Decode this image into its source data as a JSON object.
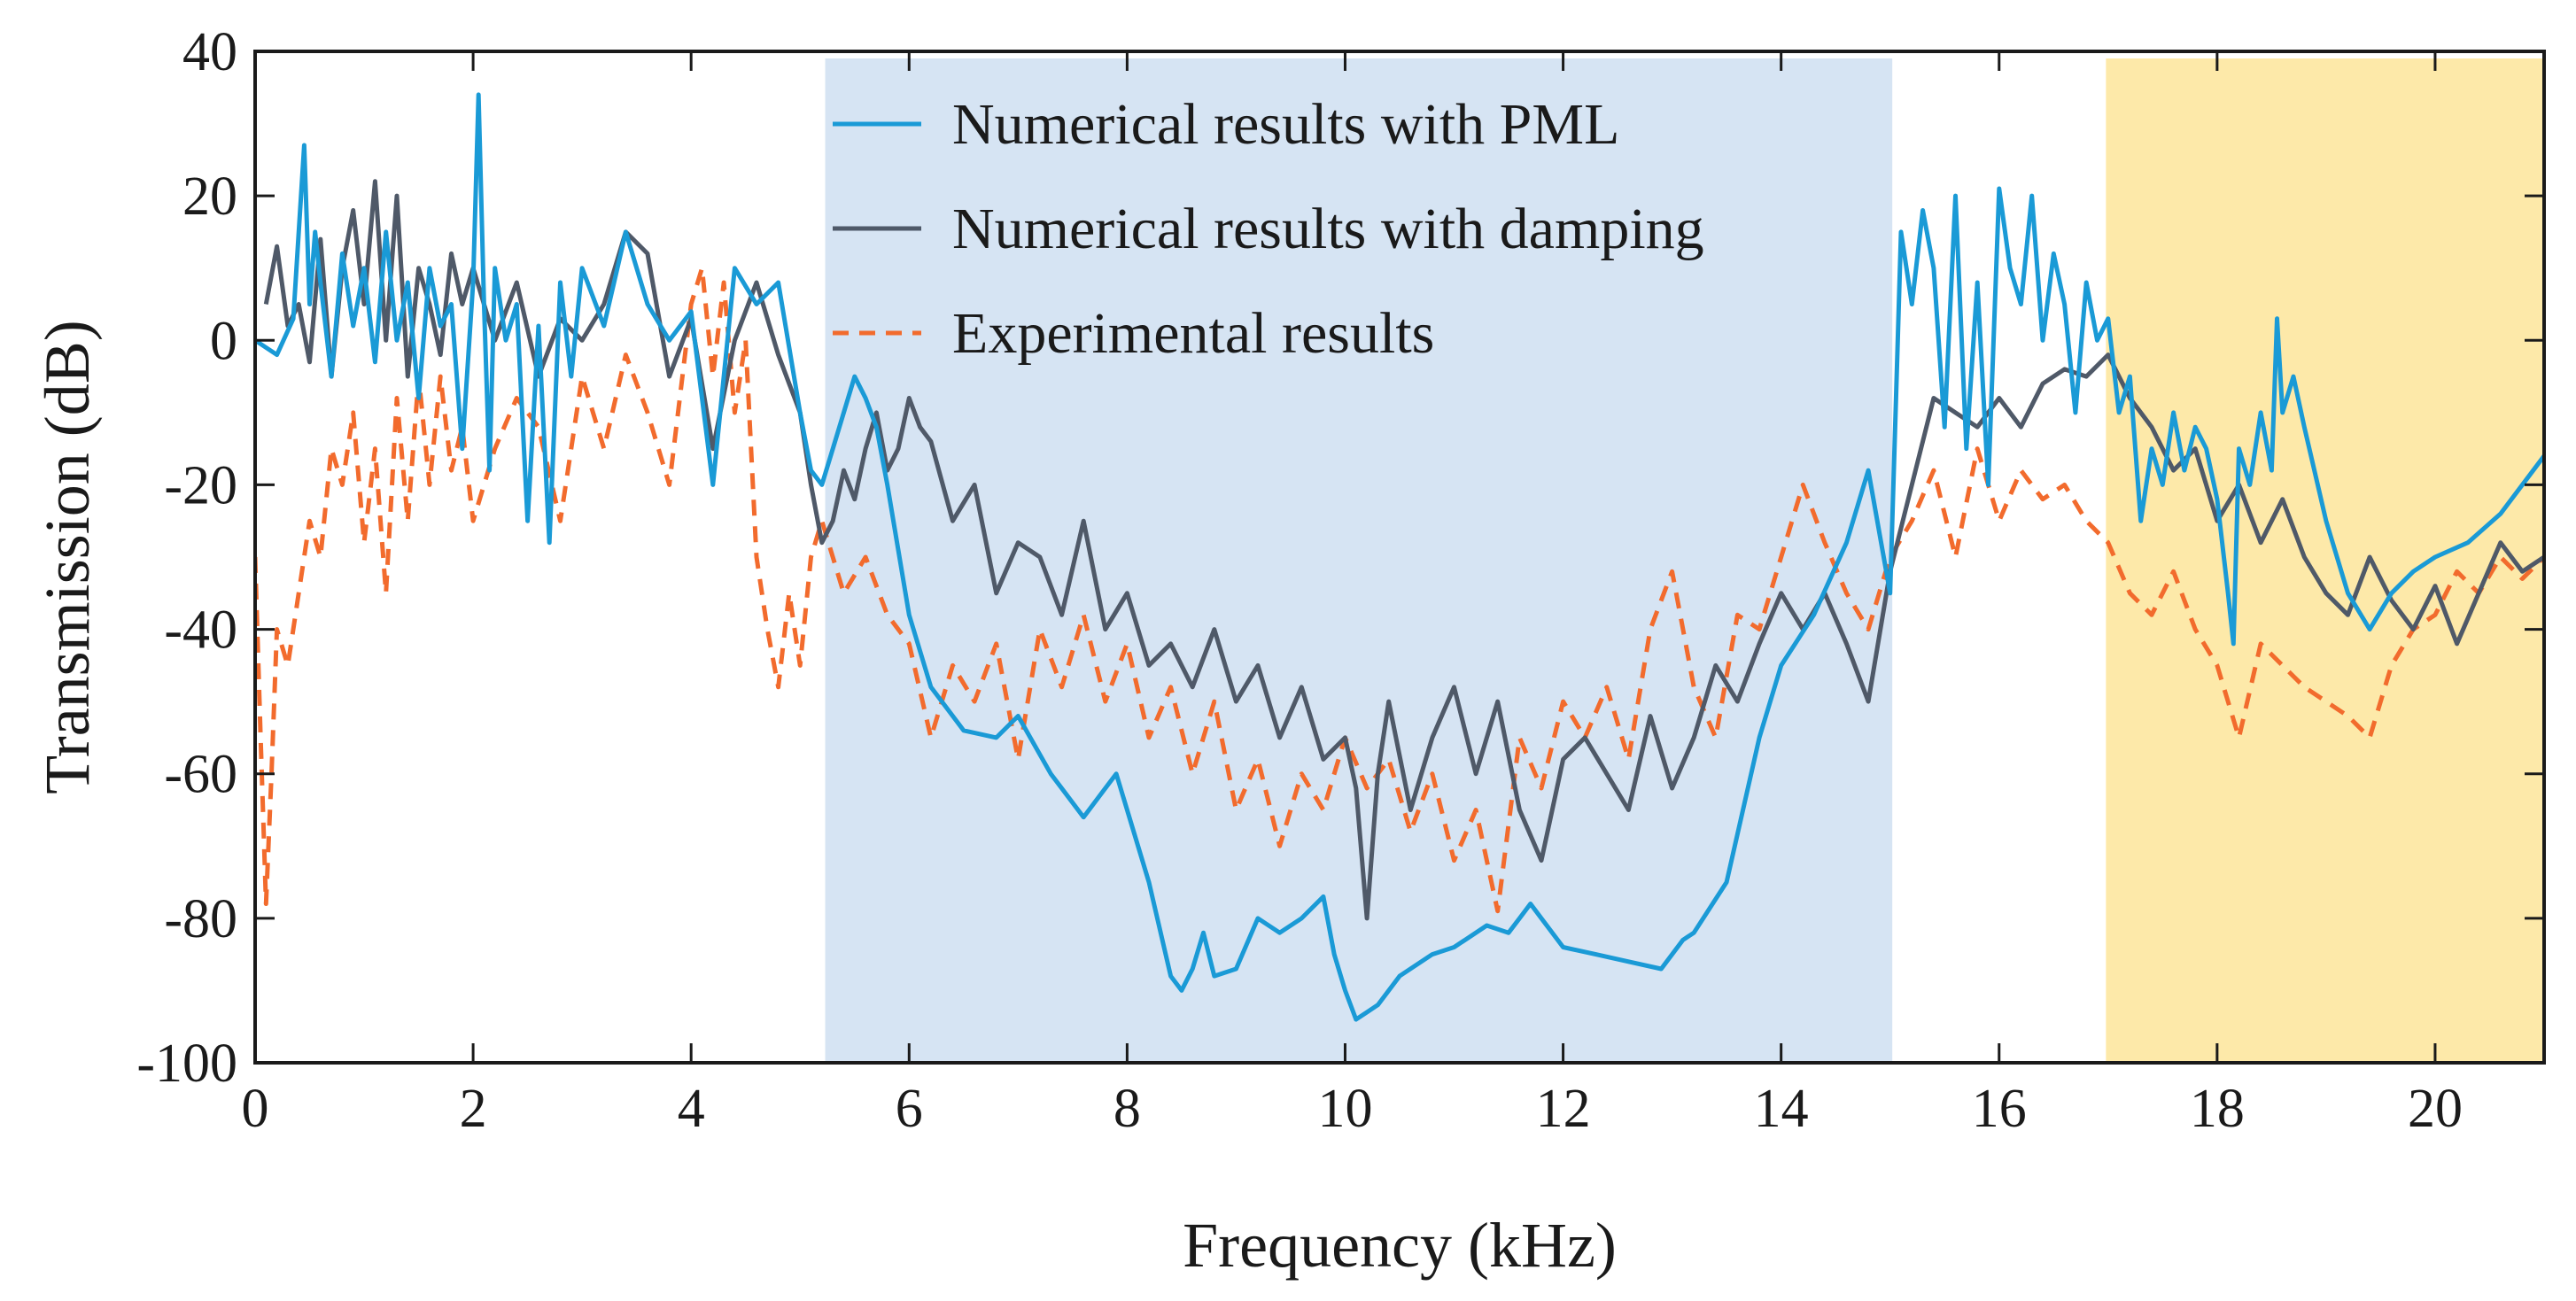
{
  "chart_data": {
    "type": "line",
    "title": "",
    "xlabel": "Frequency (kHz)",
    "ylabel": "Transmission (dB)",
    "xlim": [
      0,
      21
    ],
    "ylim": [
      -100,
      40
    ],
    "xticks": [
      0,
      2,
      4,
      6,
      8,
      10,
      12,
      14,
      16,
      18,
      20
    ],
    "yticks": [
      -100,
      -80,
      -60,
      -40,
      -20,
      0,
      20,
      40
    ],
    "xtick_labels": [
      "0",
      "2",
      "4",
      "6",
      "8",
      "10",
      "12",
      "14",
      "16",
      "18",
      "20"
    ],
    "ytick_labels": [
      "-100",
      "-80",
      "-60",
      "-40",
      "-20",
      "0",
      "20",
      "40"
    ],
    "grid": false,
    "legend_position": "top-center",
    "bands": [
      {
        "name": "band-gap-1",
        "x": [
          5.23,
          15.02
        ],
        "color": "#d6e4f3"
      },
      {
        "name": "band-gap-2",
        "x": [
          16.98,
          21.0
        ],
        "color": "#fde9a9"
      }
    ],
    "series": [
      {
        "name": "Numerical results with PML",
        "color": "#1a9ad6",
        "dash": "solid",
        "x": [
          0,
          0.2,
          0.35,
          0.45,
          0.5,
          0.55,
          0.6,
          0.7,
          0.8,
          0.9,
          1.0,
          1.1,
          1.2,
          1.3,
          1.4,
          1.5,
          1.6,
          1.7,
          1.8,
          1.9,
          2.0,
          2.05,
          2.1,
          2.15,
          2.2,
          2.3,
          2.4,
          2.5,
          2.6,
          2.7,
          2.8,
          2.9,
          3.0,
          3.2,
          3.4,
          3.6,
          3.8,
          4.0,
          4.2,
          4.4,
          4.6,
          4.8,
          5.0,
          5.1,
          5.2,
          5.3,
          5.4,
          5.5,
          5.6,
          5.7,
          5.8,
          6.0,
          6.2,
          6.5,
          6.8,
          7.0,
          7.3,
          7.6,
          7.8,
          7.9,
          8.0,
          8.2,
          8.4,
          8.5,
          8.6,
          8.7,
          8.8,
          9.0,
          9.2,
          9.4,
          9.6,
          9.8,
          9.9,
          10.0,
          10.1,
          10.2,
          10.3,
          10.5,
          10.8,
          11.0,
          11.3,
          11.5,
          11.6,
          11.7,
          11.8,
          12.0,
          12.3,
          12.6,
          12.9,
          13.0,
          13.1,
          13.2,
          13.5,
          13.8,
          14.0,
          14.3,
          14.6,
          14.8,
          15.0,
          15.05,
          15.1,
          15.2,
          15.3,
          15.4,
          15.5,
          15.6,
          15.7,
          15.8,
          15.9,
          16.0,
          16.1,
          16.2,
          16.3,
          16.4,
          16.5,
          16.6,
          16.7,
          16.8,
          16.9,
          17.0,
          17.1,
          17.2,
          17.3,
          17.4,
          17.5,
          17.6,
          17.7,
          17.8,
          17.9,
          18.0,
          18.1,
          18.15,
          18.2,
          18.3,
          18.4,
          18.5,
          18.55,
          18.6,
          18.7,
          18.8,
          19.0,
          19.2,
          19.4,
          19.6,
          19.8,
          20.0,
          20.3,
          20.6,
          21.0
        ],
        "values": [
          0,
          -2,
          3,
          27,
          5,
          15,
          8,
          -5,
          12,
          2,
          10,
          -3,
          15,
          0,
          8,
          -8,
          10,
          2,
          5,
          -15,
          8,
          34,
          5,
          -18,
          10,
          0,
          5,
          -25,
          2,
          -28,
          8,
          -5,
          10,
          2,
          15,
          5,
          0,
          4,
          -20,
          10,
          5,
          8,
          -10,
          -18,
          -20,
          -15,
          -10,
          -5,
          -8,
          -12,
          -20,
          -38,
          -48,
          -54,
          -55,
          -52,
          -60,
          -66,
          -62,
          -60,
          -65,
          -75,
          -88,
          -90,
          -87,
          -82,
          -88,
          -87,
          -80,
          -82,
          -80,
          -77,
          -85,
          -90,
          -94,
          -93,
          -92,
          -88,
          -85,
          -84,
          -81,
          -82,
          -80,
          -78,
          -80,
          -84,
          -85,
          -86,
          -87,
          -85,
          -83,
          -82,
          -75,
          -55,
          -45,
          -38,
          -28,
          -18,
          -35,
          -10,
          15,
          5,
          18,
          10,
          -12,
          20,
          -15,
          8,
          -20,
          21,
          10,
          5,
          20,
          0,
          12,
          5,
          -10,
          8,
          0,
          3,
          -10,
          -5,
          -25,
          -15,
          -20,
          -10,
          -18,
          -12,
          -15,
          -22,
          -35,
          -42,
          -15,
          -20,
          -10,
          -18,
          3,
          -10,
          -5,
          -12,
          -25,
          -35,
          -40,
          -35,
          -32,
          -30,
          -28,
          -24,
          -16
        ]
      },
      {
        "name": "Numerical results with damping",
        "color": "#4f5968",
        "dash": "solid",
        "x": [
          0.1,
          0.2,
          0.3,
          0.4,
          0.5,
          0.6,
          0.7,
          0.8,
          0.9,
          1.0,
          1.1,
          1.2,
          1.3,
          1.4,
          1.5,
          1.6,
          1.7,
          1.8,
          1.9,
          2.0,
          2.2,
          2.4,
          2.6,
          2.8,
          3.0,
          3.2,
          3.4,
          3.6,
          3.8,
          4.0,
          4.2,
          4.4,
          4.6,
          4.8,
          5.0,
          5.1,
          5.2,
          5.3,
          5.4,
          5.5,
          5.6,
          5.7,
          5.8,
          5.9,
          6.0,
          6.1,
          6.2,
          6.4,
          6.6,
          6.8,
          7.0,
          7.2,
          7.4,
          7.6,
          7.8,
          8.0,
          8.2,
          8.4,
          8.6,
          8.8,
          9.0,
          9.2,
          9.4,
          9.6,
          9.8,
          10.0,
          10.1,
          10.2,
          10.3,
          10.4,
          10.6,
          10.8,
          11.0,
          11.2,
          11.4,
          11.6,
          11.8,
          12.0,
          12.2,
          12.4,
          12.6,
          12.8,
          13.0,
          13.2,
          13.4,
          13.6,
          13.8,
          14.0,
          14.2,
          14.4,
          14.6,
          14.8,
          15.0,
          15.2,
          15.4,
          15.6,
          15.8,
          16.0,
          16.2,
          16.4,
          16.6,
          16.8,
          17.0,
          17.2,
          17.4,
          17.6,
          17.8,
          18.0,
          18.2,
          18.4,
          18.6,
          18.8,
          19.0,
          19.2,
          19.4,
          19.6,
          19.8,
          20.0,
          20.2,
          20.4,
          20.6,
          20.8,
          21.0
        ],
        "values": [
          5,
          13,
          2,
          5,
          -3,
          14,
          -5,
          10,
          18,
          5,
          22,
          0,
          20,
          -5,
          10,
          5,
          -2,
          12,
          5,
          10,
          0,
          8,
          -5,
          3,
          0,
          5,
          15,
          12,
          -5,
          3,
          -15,
          0,
          8,
          -2,
          -10,
          -20,
          -28,
          -25,
          -18,
          -22,
          -15,
          -10,
          -18,
          -15,
          -8,
          -12,
          -14,
          -25,
          -20,
          -35,
          -28,
          -30,
          -38,
          -25,
          -40,
          -35,
          -45,
          -42,
          -48,
          -40,
          -50,
          -45,
          -55,
          -48,
          -58,
          -55,
          -62,
          -80,
          -60,
          -50,
          -65,
          -55,
          -48,
          -60,
          -50,
          -65,
          -72,
          -58,
          -55,
          -60,
          -65,
          -52,
          -62,
          -55,
          -45,
          -50,
          -42,
          -35,
          -40,
          -35,
          -42,
          -50,
          -32,
          -20,
          -8,
          -10,
          -12,
          -8,
          -12,
          -6,
          -4,
          -5,
          -2,
          -8,
          -12,
          -18,
          -15,
          -25,
          -20,
          -28,
          -22,
          -30,
          -35,
          -38,
          -30,
          -36,
          -40,
          -34,
          -42,
          -35,
          -28,
          -32,
          -30
        ]
      },
      {
        "name": "Experimental results",
        "color": "#f26b2d",
        "dash": "dashed",
        "x": [
          0,
          0.05,
          0.1,
          0.15,
          0.2,
          0.3,
          0.4,
          0.5,
          0.6,
          0.7,
          0.8,
          0.9,
          1.0,
          1.1,
          1.2,
          1.3,
          1.4,
          1.5,
          1.6,
          1.7,
          1.8,
          1.9,
          2.0,
          2.2,
          2.4,
          2.6,
          2.8,
          3.0,
          3.2,
          3.4,
          3.6,
          3.8,
          4.0,
          4.1,
          4.2,
          4.3,
          4.4,
          4.5,
          4.6,
          4.7,
          4.8,
          4.9,
          5.0,
          5.1,
          5.2,
          5.4,
          5.6,
          5.8,
          6.0,
          6.2,
          6.4,
          6.6,
          6.8,
          7.0,
          7.2,
          7.4,
          7.6,
          7.8,
          8.0,
          8.2,
          8.4,
          8.6,
          8.8,
          9.0,
          9.2,
          9.4,
          9.6,
          9.8,
          10.0,
          10.2,
          10.4,
          10.6,
          10.8,
          11.0,
          11.2,
          11.4,
          11.6,
          11.8,
          12.0,
          12.2,
          12.4,
          12.6,
          12.8,
          13.0,
          13.2,
          13.4,
          13.6,
          13.8,
          14.0,
          14.2,
          14.4,
          14.6,
          14.8,
          15.0,
          15.2,
          15.4,
          15.6,
          15.8,
          16.0,
          16.2,
          16.4,
          16.6,
          16.8,
          17.0,
          17.2,
          17.4,
          17.6,
          17.8,
          18.0,
          18.2,
          18.4,
          18.6,
          18.8,
          19.0,
          19.2,
          19.4,
          19.6,
          19.8,
          20.0,
          20.2,
          20.4,
          20.6,
          20.8,
          21.0
        ],
        "values": [
          -30,
          -55,
          -78,
          -60,
          -40,
          -45,
          -35,
          -25,
          -30,
          -15,
          -20,
          -10,
          -28,
          -15,
          -35,
          -8,
          -25,
          -5,
          -20,
          -5,
          -18,
          -12,
          -25,
          -15,
          -8,
          -12,
          -25,
          -5,
          -15,
          -2,
          -10,
          -20,
          5,
          10,
          -5,
          8,
          -10,
          0,
          -30,
          -40,
          -48,
          -35,
          -45,
          -30,
          -25,
          -35,
          -30,
          -38,
          -42,
          -55,
          -45,
          -50,
          -42,
          -58,
          -40,
          -48,
          -38,
          -50,
          -42,
          -55,
          -48,
          -60,
          -50,
          -65,
          -58,
          -70,
          -60,
          -65,
          -55,
          -62,
          -58,
          -68,
          -60,
          -72,
          -65,
          -79,
          -55,
          -62,
          -50,
          -55,
          -48,
          -58,
          -40,
          -32,
          -48,
          -55,
          -38,
          -40,
          -30,
          -20,
          -28,
          -35,
          -40,
          -30,
          -25,
          -18,
          -30,
          -15,
          -25,
          -18,
          -22,
          -20,
          -25,
          -28,
          -35,
          -38,
          -32,
          -40,
          -45,
          -55,
          -42,
          -45,
          -48,
          -50,
          -52,
          -55,
          -45,
          -40,
          -38,
          -32,
          -35,
          -30,
          -33,
          -30
        ]
      }
    ]
  }
}
